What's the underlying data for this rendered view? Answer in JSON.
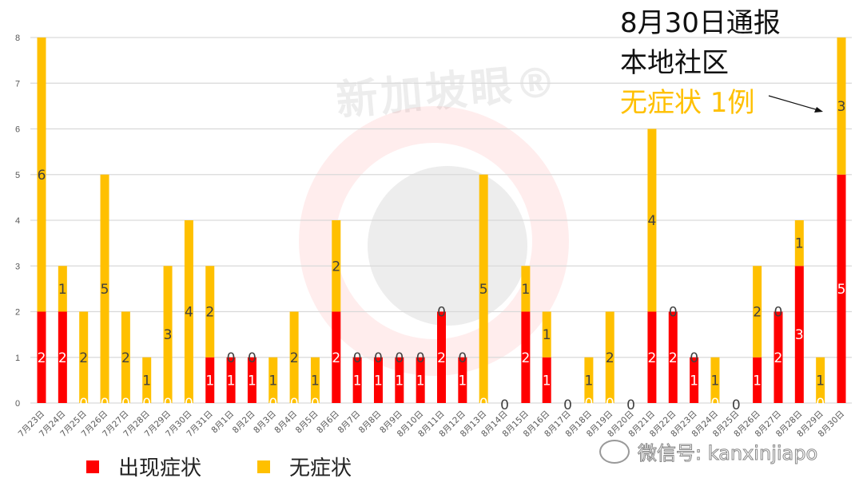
{
  "chart_data": {
    "type": "bar",
    "stacked": true,
    "title": "",
    "xlabel": "",
    "ylabel": "",
    "ylim": [
      0,
      8
    ],
    "yticks": [
      0,
      1,
      2,
      3,
      4,
      5,
      6,
      7,
      8
    ],
    "grid": true,
    "legend_position": "bottom",
    "categories": [
      "7月23日",
      "7月24日",
      "7月25日",
      "7月26日",
      "7月27日",
      "7月28日",
      "7月29日",
      "7月30日",
      "7月31日",
      "8月1日",
      "8月2日",
      "8月3日",
      "8月4日",
      "8月5日",
      "8月6日",
      "8月7日",
      "8月8日",
      "8月9日",
      "8月10日",
      "8月11日",
      "8月12日",
      "8月13日",
      "8月14日",
      "8月15日",
      "8月16日",
      "8月17日",
      "8月18日",
      "8月19日",
      "8月20日",
      "8月21日",
      "8月22日",
      "8月23日",
      "8月24日",
      "8月25日",
      "8月26日",
      "8月27日",
      "8月28日",
      "8月29日",
      "8月30日"
    ],
    "series": [
      {
        "name": "出现症状",
        "color": "#FF0000",
        "values": [
          2,
          2,
          0,
          0,
          0,
          0,
          0,
          0,
          1,
          1,
          1,
          0,
          0,
          0,
          2,
          1,
          1,
          1,
          1,
          2,
          1,
          0,
          0,
          2,
          1,
          0,
          0,
          0,
          0,
          2,
          2,
          1,
          0,
          0,
          1,
          2,
          3,
          0,
          5
        ]
      },
      {
        "name": "无症状",
        "color": "#FFC000",
        "values": [
          6,
          1,
          2,
          5,
          2,
          1,
          3,
          4,
          2,
          0,
          0,
          1,
          2,
          1,
          2,
          0,
          0,
          0,
          0,
          0,
          0,
          5,
          0,
          1,
          1,
          0,
          1,
          2,
          0,
          4,
          0,
          0,
          1,
          0,
          2,
          0,
          1,
          1,
          3
        ]
      }
    ],
    "annotations": [
      {
        "text": "8月30日通报",
        "color": "#111111"
      },
      {
        "text": "本地社区",
        "color": "#111111"
      },
      {
        "text": "无症状 1例",
        "color": "#FFC000",
        "arrow_to": "8月30日"
      }
    ]
  },
  "annotation": {
    "line1": "8月30日通报",
    "line2": "本地社区",
    "line3": "无症状 1例"
  },
  "legend": {
    "items": [
      {
        "label": "出现症状",
        "color": "#FF0000"
      },
      {
        "label": "无症状",
        "color": "#FFC000"
      }
    ]
  },
  "watermark": {
    "brand": "新加坡眼®",
    "wechat": "微信号: kanxinjiapo"
  }
}
